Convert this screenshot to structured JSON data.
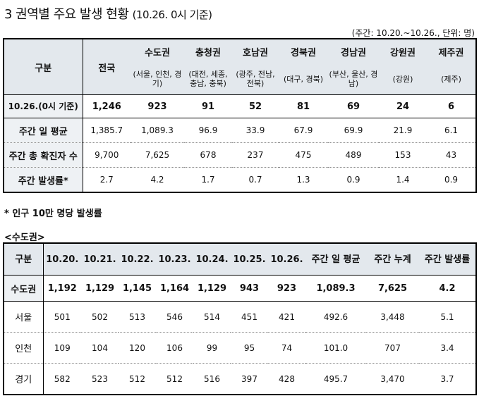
{
  "title": {
    "main": "3 권역별 주요 발생 현황",
    "sub": "(10.26. 0시 기준)"
  },
  "unit_note": "(주간: 10.20.~10.26., 단위: 명)",
  "table1": {
    "header_label": "구분",
    "national": "전국",
    "regions": [
      {
        "name": "수도권",
        "sub": "(서울, 인천, 경기)"
      },
      {
        "name": "충청권",
        "sub": "(대전, 세종, 충남, 충북)"
      },
      {
        "name": "호남권",
        "sub": "(광주, 전남, 전북)"
      },
      {
        "name": "경북권",
        "sub": "(대구, 경북)"
      },
      {
        "name": "경남권",
        "sub": "(부산, 울산, 경남)"
      },
      {
        "name": "강원권",
        "sub": "(강원)"
      },
      {
        "name": "제주권",
        "sub": "(제주)"
      }
    ],
    "rows": [
      {
        "label": "10.26.(0시 기준)",
        "values": [
          "1,246",
          "923",
          "91",
          "52",
          "81",
          "69",
          "24",
          "6"
        ]
      },
      {
        "label": "주간 일 평균",
        "values": [
          "1,385.7",
          "1,089.3",
          "96.9",
          "33.9",
          "67.9",
          "69.9",
          "21.9",
          "6.1"
        ]
      },
      {
        "label": "주간 총 확진자 수",
        "values": [
          "9,700",
          "7,625",
          "678",
          "237",
          "475",
          "489",
          "153",
          "43"
        ]
      },
      {
        "label": "주간 발생률*",
        "values": [
          "2.7",
          "4.2",
          "1.7",
          "0.7",
          "1.3",
          "0.9",
          "1.4",
          "0.9"
        ]
      }
    ]
  },
  "footnote": "* 인구 10만 명당 발생률",
  "section_label": "<수도권>",
  "table2": {
    "headers": [
      "구분",
      "10.20.",
      "10.21.",
      "10.22.",
      "10.23.",
      "10.24.",
      "10.25.",
      "10.26.",
      "주간 일 평균",
      "주간 누계",
      "주간 발생률"
    ],
    "rows": [
      {
        "label": "수도권",
        "values": [
          "1,192",
          "1,129",
          "1,145",
          "1,164",
          "1,129",
          "943",
          "923",
          "1,089.3",
          "7,625",
          "4.2"
        ]
      },
      {
        "label": "서울",
        "values": [
          "501",
          "502",
          "513",
          "546",
          "514",
          "451",
          "421",
          "492.6",
          "3,448",
          "5.1"
        ]
      },
      {
        "label": "인천",
        "values": [
          "109",
          "104",
          "120",
          "106",
          "99",
          "95",
          "74",
          "101.0",
          "707",
          "3.4"
        ]
      },
      {
        "label": "경기",
        "values": [
          "582",
          "523",
          "512",
          "512",
          "516",
          "397",
          "428",
          "495.7",
          "3,470",
          "3.7"
        ]
      }
    ]
  }
}
